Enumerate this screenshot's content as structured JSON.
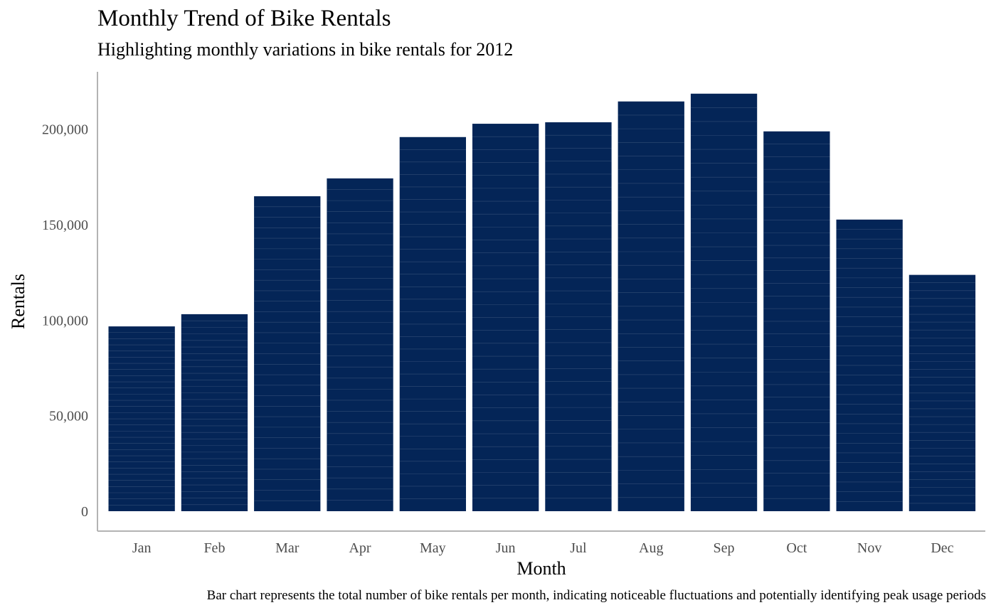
{
  "chart_data": {
    "type": "bar",
    "title": "Monthly Trend of Bike Rentals",
    "subtitle": "Highlighting monthly variations in bike rentals for 2012",
    "caption": "Bar chart represents the total number of bike rentals per month, indicating noticeable fluctuations and potentially identifying peak usage periods",
    "xlabel": "Month",
    "ylabel": "Rentals",
    "categories": [
      "Jan",
      "Feb",
      "Mar",
      "Apr",
      "May",
      "Jun",
      "Jul",
      "Aug",
      "Sep",
      "Oct",
      "Nov",
      "Dec"
    ],
    "values": [
      96744,
      103137,
      164875,
      174224,
      195865,
      202830,
      203607,
      214503,
      218573,
      198841,
      152664,
      123713
    ],
    "ylim": [
      0,
      225000
    ],
    "yticks": [
      0,
      50000,
      100000,
      150000,
      200000
    ],
    "ytick_labels": [
      "0",
      "50,000",
      "100,000",
      "150,000",
      "200,000"
    ],
    "grid": false,
    "colors": {
      "bar": "#042557",
      "bar_stroke": "#5a6f90",
      "axis": "#b3b3b3"
    }
  }
}
